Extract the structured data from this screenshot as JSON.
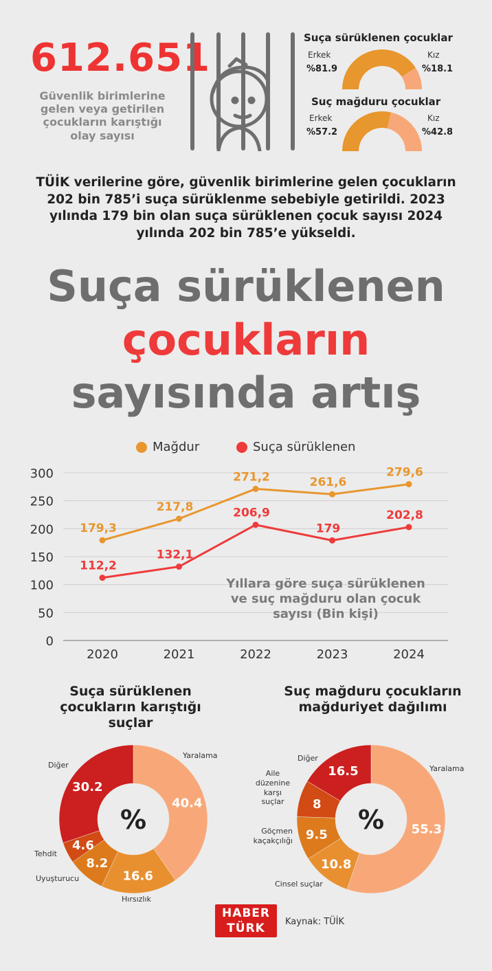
{
  "top": {
    "big_number": "612.651",
    "big_caption": "Güvenlik birimlerine gelen veya getirilen çocukların karıştığı olay sayısı"
  },
  "gender": {
    "dragged": {
      "title": "Suça sürüklenen çocuklar",
      "male_label": "Erkek",
      "male_pct": "%81.9",
      "female_label": "Kız",
      "female_pct": "%18.1",
      "male_value": 81.9,
      "female_value": 18.1
    },
    "victim": {
      "title": "Suç mağduru çocuklar",
      "male_label": "Erkek",
      "male_pct": "%57.2",
      "female_label": "Kız",
      "female_pct": "%42.8",
      "male_value": 57.2,
      "female_value": 42.8
    }
  },
  "intro_text": "TÜİK verilerine göre, güvenlik birimlerine gelen çocukların 202 bin 785’i suça sürüklenme sebebiyle getirildi. 2023 yılında 179 bin olan suça sürüklenen çocuk sayısı 2024 yılında 202 bin 785’e yükseldi.",
  "headline": {
    "line1": "Suça sürüklenen",
    "line2": "çocukların",
    "line3": "sayısında artış"
  },
  "colors": {
    "red": "#ee3a3a",
    "orange": "#e8962e",
    "light_orange": "#f8a878",
    "dark_red": "#cc1f1f",
    "gray_text": "#6e6e6e"
  },
  "chart_data": [
    {
      "type": "line",
      "title": "Yıllara göre suça sürüklenen ve suç mağduru olan çocuk sayısı (Bin kişi)",
      "categories": [
        "2020",
        "2021",
        "2022",
        "2023",
        "2024"
      ],
      "series": [
        {
          "name": "Mağdur",
          "values": [
            179.3,
            217.8,
            271.2,
            261.6,
            279.6
          ],
          "labels": [
            "179,3",
            "217,8",
            "271,2",
            "261,6",
            "279,6"
          ],
          "color": "#e8962e"
        },
        {
          "name": "Suça sürüklenen",
          "values": [
            112.2,
            132.1,
            206.9,
            179,
            202.8
          ],
          "labels": [
            "112,2",
            "132,1",
            "206,9",
            "179",
            "202,8"
          ],
          "color": "#ee3a3a"
        }
      ],
      "ylim": [
        0,
        300
      ],
      "yticks": [
        0,
        50,
        100,
        150,
        200,
        250,
        300
      ],
      "grid": true,
      "legend": "top"
    },
    {
      "type": "pie",
      "title": "Suça sürüklenen çocukların karıştığı suçlar",
      "center_label": "%",
      "slices": [
        {
          "name": "Yaralama",
          "value": 40.4,
          "label": "40.4",
          "color": "#f8a878"
        },
        {
          "name": "Hırsızlık",
          "value": 16.6,
          "label": "16.6",
          "color": "#e89030"
        },
        {
          "name": "Uyuşturucu",
          "value": 8.2,
          "label": "8.2",
          "color": "#dc7a1c"
        },
        {
          "name": "Tehdit",
          "value": 4.6,
          "label": "4.6",
          "color": "#d24a14"
        },
        {
          "name": "Diğer",
          "value": 30.2,
          "label": "30.2",
          "color": "#cc1f1f"
        }
      ]
    },
    {
      "type": "pie",
      "title": "Suç mağduru çocukların mağduriyet dağılımı",
      "center_label": "%",
      "slices": [
        {
          "name": "Yaralama",
          "value": 55.3,
          "label": "55.3",
          "color": "#f8a878"
        },
        {
          "name": "Cinsel suçlar",
          "value": 10.8,
          "label": "10.8",
          "color": "#e89030"
        },
        {
          "name": "Göçmen kaçakçılığı",
          "value": 9.5,
          "label": "9.5",
          "color": "#dc7a1c"
        },
        {
          "name": "Aile düzenine karşı suçlar",
          "value": 8,
          "label": "8",
          "color": "#d24a14"
        },
        {
          "name": "Diğer",
          "value": 16.5,
          "label": "16.5",
          "color": "#cc1f1f"
        }
      ]
    }
  ],
  "donut1": {
    "title": "Suça sürüklenen çocukların karıştığı suçlar",
    "labels": {
      "yaralama": "Yaralama",
      "hirsizlik": "Hırsızlık",
      "uyusturucu": "Uyuşturucu",
      "tehdit": "Tehdit",
      "diger": "Diğer"
    }
  },
  "donut2": {
    "title": "Suç mağduru çocukların mağduriyet dağılımı",
    "labels": {
      "yaralama": "Yaralama",
      "cinsel": "Cinsel suçlar",
      "gocmen": "Göçmen kaçakçılığı",
      "aile": "Aile düzenine karşı suçlar",
      "diger": "Diğer"
    }
  },
  "footer": {
    "logo_line1": "HABER",
    "logo_line2": "TÜRK",
    "source": "Kaynak: TÜİK"
  }
}
